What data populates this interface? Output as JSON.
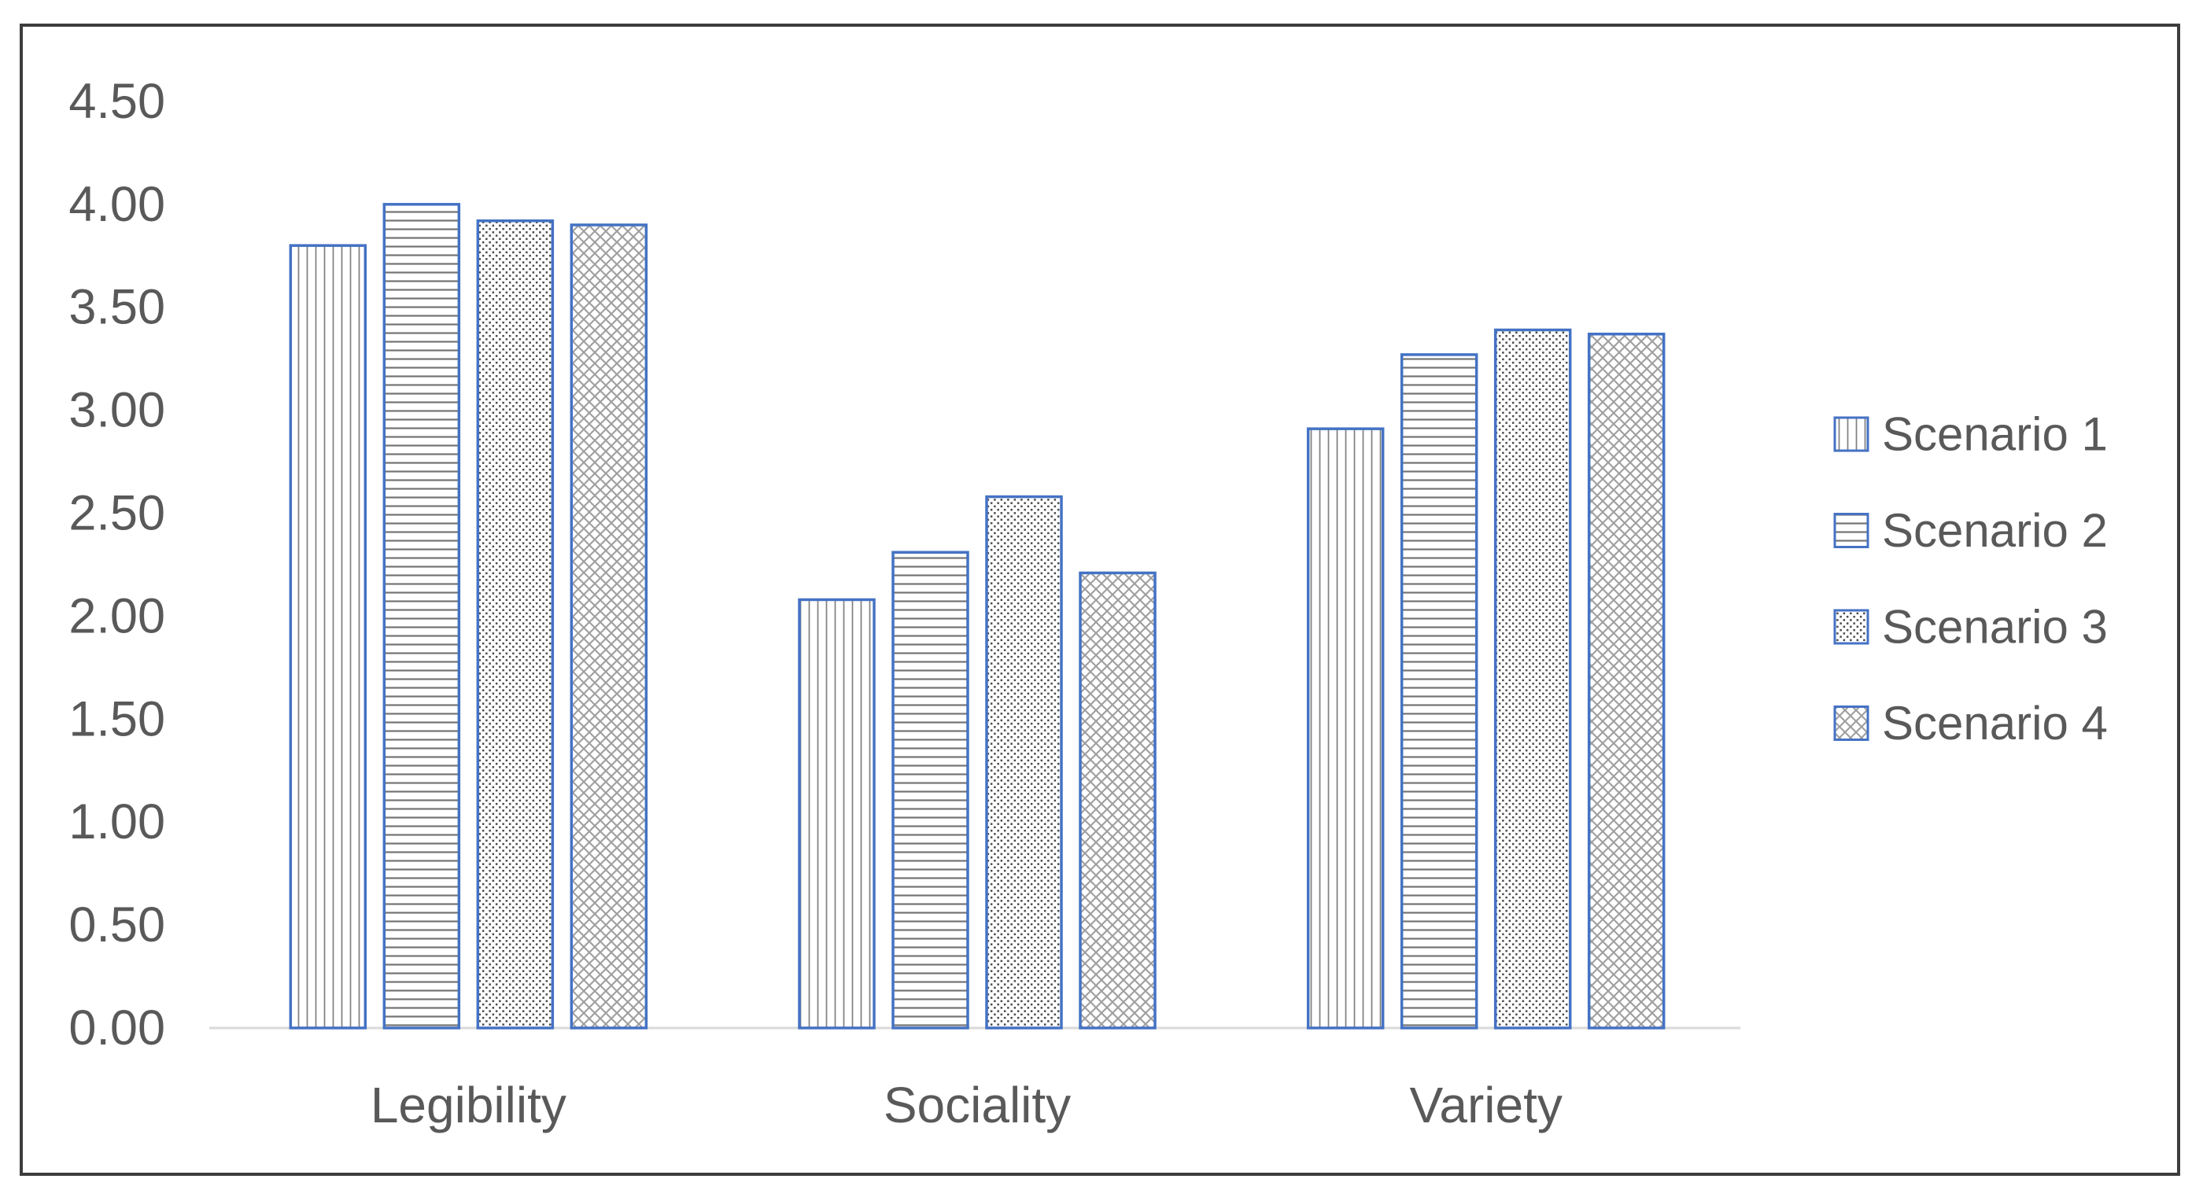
{
  "chart_data": {
    "type": "bar",
    "categories": [
      "Legibility",
      "Sociality",
      "Variety"
    ],
    "series": [
      {
        "name": "Scenario 1",
        "pattern": "vertical-lines",
        "values": [
          3.8,
          2.08,
          2.91
        ]
      },
      {
        "name": "Scenario 2",
        "pattern": "horizontal-lines",
        "values": [
          4.0,
          2.31,
          3.27
        ]
      },
      {
        "name": "Scenario 3",
        "pattern": "dots",
        "values": [
          3.92,
          2.58,
          3.39
        ]
      },
      {
        "name": "Scenario 4",
        "pattern": "crosshatch",
        "values": [
          3.9,
          2.21,
          3.37
        ]
      }
    ],
    "title": "",
    "xlabel": "",
    "ylabel": "",
    "ylim": [
      0,
      4.5
    ],
    "y_tick_step": 0.5,
    "y_tick_labels": [
      "0.00",
      "0.50",
      "1.00",
      "1.50",
      "2.00",
      "2.50",
      "3.00",
      "3.50",
      "4.00",
      "4.50"
    ],
    "grid": false,
    "legend_position": "right",
    "colors": {
      "bar_border": "#4472C4",
      "text": "#595959",
      "axis_line": "#D9D9D9",
      "frame_border": "#3d3d3d",
      "pattern_line": "#7f7f7f",
      "pattern_dot": "#4a4a4a",
      "pattern_cross": "#9f9f9f",
      "background": "#ffffff"
    }
  }
}
